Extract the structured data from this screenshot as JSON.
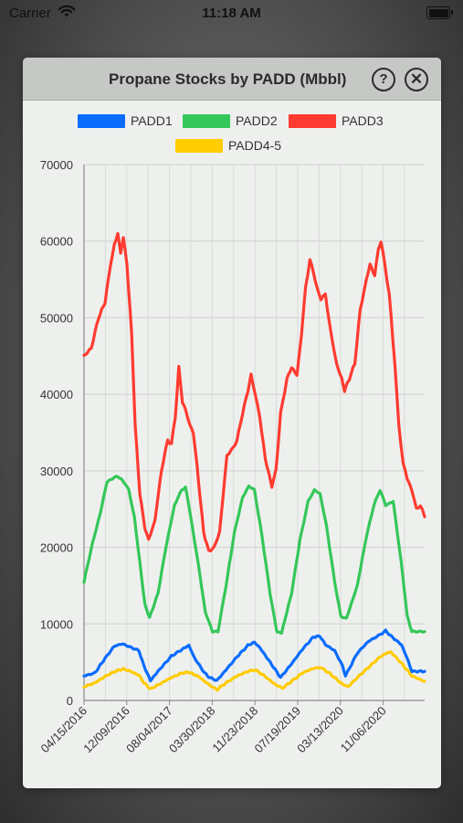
{
  "status_bar": {
    "carrier": "Carrier",
    "time": "11:18 AM"
  },
  "dialog": {
    "title": "Propane Stocks by PADD (Mbbl)"
  },
  "chart_data": {
    "type": "line",
    "title": "Propane Stocks by PADD (Mbbl)",
    "xlabel": "",
    "ylabel": "",
    "ylim": [
      0,
      70000
    ],
    "yticks": [
      "0",
      "10000",
      "20000",
      "30000",
      "40000",
      "50000",
      "60000",
      "70000"
    ],
    "xticks": [
      "04/15/2016",
      "12/09/2016",
      "08/04/2017",
      "03/30/2018",
      "11/23/2018",
      "07/19/2019",
      "03/13/2020",
      "11/06/2020"
    ],
    "x_period_days": 238,
    "x_start": "04/15/2016",
    "x_end": "06/25/2021",
    "grid": true,
    "legend_position": "top",
    "series": [
      {
        "name": "PADD1",
        "color": "#0a6cff",
        "points": [
          [
            "04/15/2016",
            3200
          ],
          [
            "06/15/2016",
            3600
          ],
          [
            "08/01/2016",
            5200
          ],
          [
            "10/01/2016",
            7100
          ],
          [
            "11/15/2016",
            7400
          ],
          [
            "12/15/2016",
            7100
          ],
          [
            "01/15/2017",
            6800
          ],
          [
            "02/15/2017",
            6500
          ],
          [
            "03/15/2017",
            4500
          ],
          [
            "04/20/2017",
            2600
          ],
          [
            "06/15/2017",
            4200
          ],
          [
            "08/15/2017",
            5800
          ],
          [
            "10/15/2017",
            6700
          ],
          [
            "11/20/2017",
            7200
          ],
          [
            "12/20/2017",
            5600
          ],
          [
            "02/15/2018",
            3600
          ],
          [
            "03/15/2018",
            3000
          ],
          [
            "04/25/2018",
            2600
          ],
          [
            "06/15/2018",
            4000
          ],
          [
            "08/15/2018",
            5700
          ],
          [
            "10/15/2018",
            7200
          ],
          [
            "11/20/2018",
            7600
          ],
          [
            "12/20/2018",
            6900
          ],
          [
            "02/15/2019",
            5000
          ],
          [
            "04/15/2019",
            3000
          ],
          [
            "06/15/2019",
            4800
          ],
          [
            "08/15/2019",
            6700
          ],
          [
            "10/15/2019",
            8300
          ],
          [
            "11/20/2019",
            8400
          ],
          [
            "12/20/2019",
            7300
          ],
          [
            "02/10/2020",
            6500
          ],
          [
            "03/25/2020",
            4500
          ],
          [
            "04/10/2020",
            3200
          ],
          [
            "06/15/2020",
            6200
          ],
          [
            "08/15/2020",
            7700
          ],
          [
            "10/20/2020",
            8600
          ],
          [
            "11/20/2020",
            9100
          ],
          [
            "12/20/2020",
            8400
          ],
          [
            "02/15/2021",
            7300
          ],
          [
            "03/15/2021",
            5800
          ],
          [
            "04/15/2021",
            3800
          ],
          [
            "06/25/2021",
            3800
          ]
        ]
      },
      {
        "name": "PADD2",
        "color": "#34c759",
        "points": [
          [
            "04/15/2016",
            15500
          ],
          [
            "06/01/2016",
            20500
          ],
          [
            "07/15/2016",
            24500
          ],
          [
            "08/20/2016",
            28500
          ],
          [
            "09/20/2016",
            29000
          ],
          [
            "10/20/2016",
            29300
          ],
          [
            "11/25/2016",
            28500
          ],
          [
            "12/20/2016",
            27500
          ],
          [
            "01/20/2017",
            24000
          ],
          [
            "02/20/2017",
            18000
          ],
          [
            "03/20/2017",
            12500
          ],
          [
            "04/15/2017",
            10800
          ],
          [
            "06/01/2017",
            14000
          ],
          [
            "07/15/2017",
            20000
          ],
          [
            "09/01/2017",
            25500
          ],
          [
            "10/10/2017",
            27500
          ],
          [
            "11/01/2017",
            27800
          ],
          [
            "11/20/2017",
            25500
          ],
          [
            "01/10/2018",
            18000
          ],
          [
            "02/20/2018",
            11500
          ],
          [
            "04/01/2018",
            9000
          ],
          [
            "05/01/2018",
            9000
          ],
          [
            "06/15/2018",
            15000
          ],
          [
            "08/01/2018",
            22000
          ],
          [
            "09/15/2018",
            26500
          ],
          [
            "10/20/2018",
            28000
          ],
          [
            "11/20/2018",
            27500
          ],
          [
            "01/01/2019",
            21500
          ],
          [
            "02/15/2019",
            14000
          ],
          [
            "03/25/2019",
            9000
          ],
          [
            "04/20/2019",
            8800
          ],
          [
            "06/15/2019",
            14000
          ],
          [
            "08/01/2019",
            21000
          ],
          [
            "09/15/2019",
            26000
          ],
          [
            "10/20/2019",
            27500
          ],
          [
            "11/20/2019",
            27000
          ],
          [
            "12/25/2019",
            23000
          ],
          [
            "02/10/2020",
            15500
          ],
          [
            "03/15/2020",
            11000
          ],
          [
            "04/15/2020",
            10700
          ],
          [
            "06/15/2020",
            15000
          ],
          [
            "08/01/2020",
            21000
          ],
          [
            "09/15/2020",
            25500
          ],
          [
            "10/20/2020",
            27500
          ],
          [
            "11/20/2020",
            25500
          ],
          [
            "01/01/2021",
            26000
          ],
          [
            "02/15/2021",
            18000
          ],
          [
            "03/20/2021",
            11000
          ],
          [
            "04/15/2021",
            9000
          ],
          [
            "06/25/2021",
            9000
          ]
        ]
      },
      {
        "name": "PADD3",
        "color": "#ff3b30",
        "points": [
          [
            "04/15/2016",
            45000
          ],
          [
            "05/25/2016",
            46000
          ],
          [
            "07/05/2016",
            50000
          ],
          [
            "08/10/2016",
            52000
          ],
          [
            "09/10/2016",
            57000
          ],
          [
            "10/01/2016",
            59500
          ],
          [
            "10/20/2016",
            61000
          ],
          [
            "11/05/2016",
            58500
          ],
          [
            "11/20/2016",
            60500
          ],
          [
            "12/10/2016",
            57000
          ],
          [
            "01/05/2017",
            48000
          ],
          [
            "01/25/2017",
            36000
          ],
          [
            "02/20/2017",
            27000
          ],
          [
            "03/20/2017",
            22500
          ],
          [
            "04/10/2017",
            21000
          ],
          [
            "05/15/2017",
            23500
          ],
          [
            "06/20/2017",
            30000
          ],
          [
            "07/25/2017",
            34000
          ],
          [
            "08/15/2017",
            33500
          ],
          [
            "09/05/2017",
            37000
          ],
          [
            "09/25/2017",
            43500
          ],
          [
            "10/15/2017",
            39000
          ],
          [
            "11/01/2017",
            38000
          ],
          [
            "11/25/2017",
            36000
          ],
          [
            "12/15/2017",
            35000
          ],
          [
            "01/05/2018",
            30500
          ],
          [
            "02/10/2018",
            22000
          ],
          [
            "03/10/2018",
            19500
          ],
          [
            "04/10/2018",
            20000
          ],
          [
            "05/10/2018",
            22000
          ],
          [
            "06/20/2018",
            32000
          ],
          [
            "07/25/2018",
            33000
          ],
          [
            "08/15/2018",
            34000
          ],
          [
            "09/15/2018",
            37500
          ],
          [
            "10/15/2018",
            40500
          ],
          [
            "11/01/2018",
            42500
          ],
          [
            "11/25/2018",
            40000
          ],
          [
            "12/20/2018",
            37000
          ],
          [
            "01/20/2019",
            31500
          ],
          [
            "02/25/2019",
            28000
          ],
          [
            "03/20/2019",
            30000
          ],
          [
            "04/15/2019",
            37500
          ],
          [
            "05/20/2019",
            42000
          ],
          [
            "06/15/2019",
            43500
          ],
          [
            "07/15/2019",
            42500
          ],
          [
            "08/10/2019",
            48000
          ],
          [
            "09/01/2019",
            54000
          ],
          [
            "09/25/2019",
            57500
          ],
          [
            "10/15/2019",
            56000
          ],
          [
            "11/01/2019",
            54000
          ],
          [
            "11/25/2019",
            52500
          ],
          [
            "12/20/2019",
            53000
          ],
          [
            "01/20/2020",
            48000
          ],
          [
            "02/20/2020",
            44000
          ],
          [
            "03/20/2020",
            42000
          ],
          [
            "04/05/2020",
            40500
          ],
          [
            "05/01/2020",
            42000
          ],
          [
            "06/01/2020",
            44000
          ],
          [
            "07/01/2020",
            51000
          ],
          [
            "08/05/2020",
            55000
          ],
          [
            "08/25/2020",
            57000
          ],
          [
            "09/20/2020",
            55500
          ],
          [
            "10/10/2020",
            59000
          ],
          [
            "10/25/2020",
            60000
          ],
          [
            "11/15/2020",
            57000
          ],
          [
            "12/10/2020",
            53000
          ],
          [
            "01/10/2021",
            44000
          ],
          [
            "02/01/2021",
            36000
          ],
          [
            "02/25/2021",
            31000
          ],
          [
            "03/20/2021",
            29000
          ],
          [
            "04/15/2021",
            27500
          ],
          [
            "05/10/2021",
            25000
          ],
          [
            "06/01/2021",
            25500
          ],
          [
            "06/25/2021",
            24000
          ]
        ]
      },
      {
        "name": "PADD4-5",
        "color": "#ffcc00",
        "points": [
          [
            "04/15/2016",
            1800
          ],
          [
            "06/15/2016",
            2300
          ],
          [
            "08/15/2016",
            3200
          ],
          [
            "10/15/2016",
            3900
          ],
          [
            "11/20/2016",
            4100
          ],
          [
            "12/20/2016",
            3900
          ],
          [
            "02/15/2017",
            3300
          ],
          [
            "03/15/2017",
            2300
          ],
          [
            "04/20/2017",
            1500
          ],
          [
            "06/15/2017",
            2200
          ],
          [
            "08/15/2017",
            3000
          ],
          [
            "10/15/2017",
            3600
          ],
          [
            "11/20/2017",
            3700
          ],
          [
            "01/15/2018",
            3100
          ],
          [
            "03/15/2018",
            2000
          ],
          [
            "04/25/2018",
            1400
          ],
          [
            "06/15/2018",
            2300
          ],
          [
            "08/15/2018",
            3200
          ],
          [
            "10/15/2018",
            3800
          ],
          [
            "11/25/2018",
            4000
          ],
          [
            "01/15/2019",
            3200
          ],
          [
            "03/15/2019",
            2100
          ],
          [
            "04/25/2019",
            1600
          ],
          [
            "06/15/2019",
            2500
          ],
          [
            "08/15/2019",
            3600
          ],
          [
            "10/15/2019",
            4200
          ],
          [
            "11/25/2019",
            4300
          ],
          [
            "01/15/2020",
            3500
          ],
          [
            "03/25/2020",
            2100
          ],
          [
            "04/25/2020",
            1800
          ],
          [
            "06/15/2020",
            3000
          ],
          [
            "08/15/2020",
            4300
          ],
          [
            "10/15/2020",
            5600
          ],
          [
            "11/25/2020",
            6200
          ],
          [
            "12/20/2020",
            6300
          ],
          [
            "02/15/2021",
            4900
          ],
          [
            "04/15/2021",
            3200
          ],
          [
            "06/25/2021",
            2500
          ]
        ]
      }
    ]
  }
}
